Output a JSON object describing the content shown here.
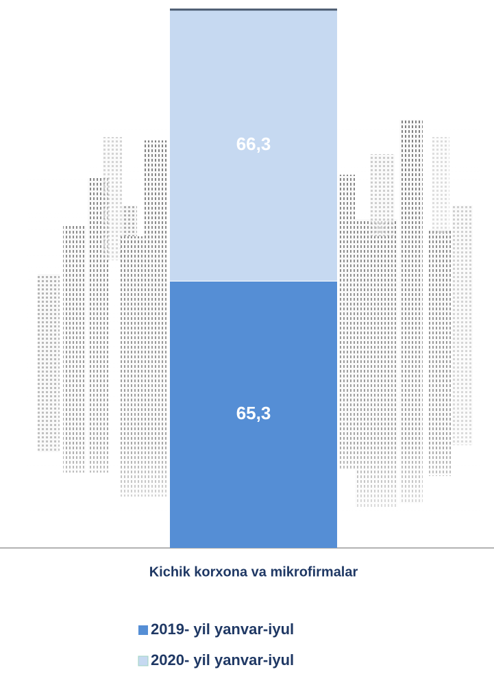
{
  "chart_data": {
    "type": "stacked-bar",
    "categories": [
      "Kichik korxona va mikrofirmalar"
    ],
    "series": [
      {
        "name": "2019- yil yanvar-iyul",
        "color": "#558ed5",
        "values": [
          65.3
        ],
        "value_labels": [
          "65,3"
        ]
      },
      {
        "name": "2020- yil yanvar-iyul",
        "color": "#c6d9f1",
        "values": [
          66.3
        ],
        "value_labels": [
          "66,3"
        ]
      }
    ]
  }
}
